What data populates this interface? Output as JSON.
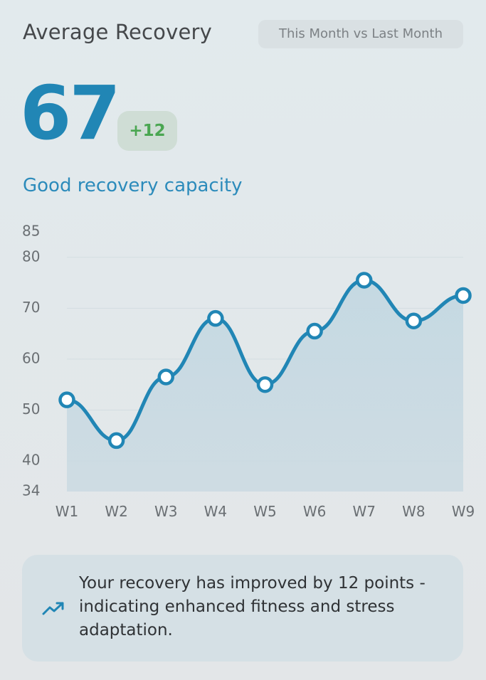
{
  "header": {
    "title": "Average Recovery",
    "period_label": "This Month vs Last Month"
  },
  "summary": {
    "value": "67",
    "delta": "+12",
    "status": "Good recovery capacity"
  },
  "insight": {
    "icon": "trending-up-icon",
    "text": "Your recovery has improved by 12 points - indicating enhanced fitness and stress adaptation."
  },
  "colors": {
    "accent": "#2186b5",
    "positive": "#4aa651",
    "area_fill": "#c9dbe4"
  },
  "chart_data": {
    "type": "area",
    "categories": [
      "W1",
      "W2",
      "W3",
      "W4",
      "W5",
      "W6",
      "W7",
      "W8",
      "W9"
    ],
    "values": [
      52,
      44,
      56.5,
      68,
      55,
      65.5,
      75.5,
      67.5,
      72.5
    ],
    "ylim": [
      34,
      85
    ],
    "yticks": [
      34,
      40,
      50,
      60,
      70,
      80,
      85
    ],
    "grid_lines": [
      40,
      50,
      60,
      70,
      80
    ],
    "grid": true,
    "smooth": true,
    "markers": true,
    "title": "",
    "xlabel": "",
    "ylabel": ""
  }
}
